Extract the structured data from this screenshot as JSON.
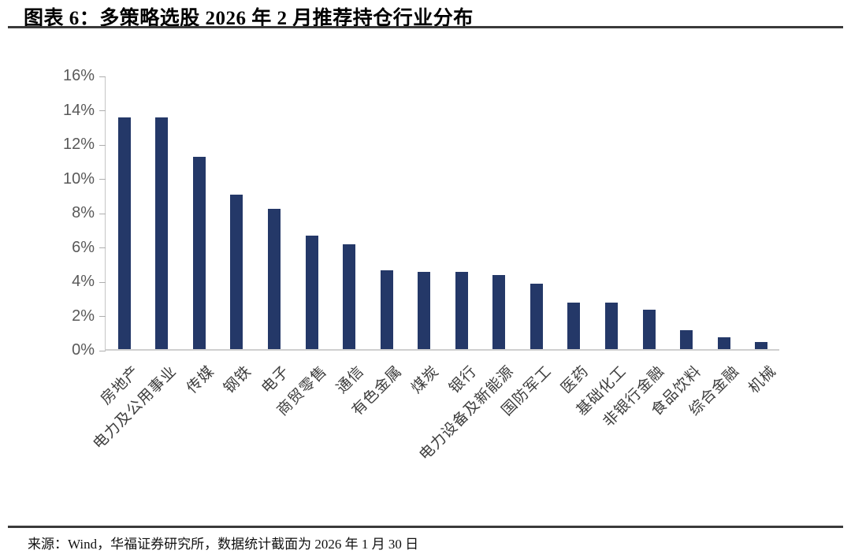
{
  "header": {
    "title": "图表 6：多策略选股 2026 年 2 月推荐持仓行业分布"
  },
  "footer": {
    "source": "来源：Wind，华福证券研究所，数据统计截面为 2026 年 1 月 30 日"
  },
  "colors": {
    "bar": "#243868",
    "axis_line": "#c6c6c6",
    "tick_label": "#595959",
    "rule": "#3a3a3a"
  },
  "chart_data": {
    "type": "bar",
    "title": "多策略选股 2026 年 2 月推荐持仓行业分布",
    "xlabel": "",
    "ylabel": "",
    "categories": [
      "房地产",
      "电力及公用事业",
      "传媒",
      "钢铁",
      "电子",
      "商贸零售",
      "通信",
      "有色金属",
      "煤炭",
      "银行",
      "电力设备及新能源",
      "国防军工",
      "医药",
      "基础化工",
      "非银行金融",
      "食品饮料",
      "综合金融",
      "机械"
    ],
    "values": [
      13.5,
      13.5,
      11.2,
      9.0,
      8.2,
      6.6,
      6.1,
      4.6,
      4.5,
      4.5,
      4.3,
      3.8,
      2.7,
      2.7,
      2.3,
      1.1,
      0.7,
      0.4
    ],
    "unit": "%",
    "ylim": [
      0,
      16
    ],
    "ytick_step": 2,
    "yticks": [
      "0%",
      "2%",
      "4%",
      "6%",
      "8%",
      "10%",
      "12%",
      "14%",
      "16%"
    ],
    "grid": false,
    "legend": null,
    "bar_color": "#243868"
  }
}
